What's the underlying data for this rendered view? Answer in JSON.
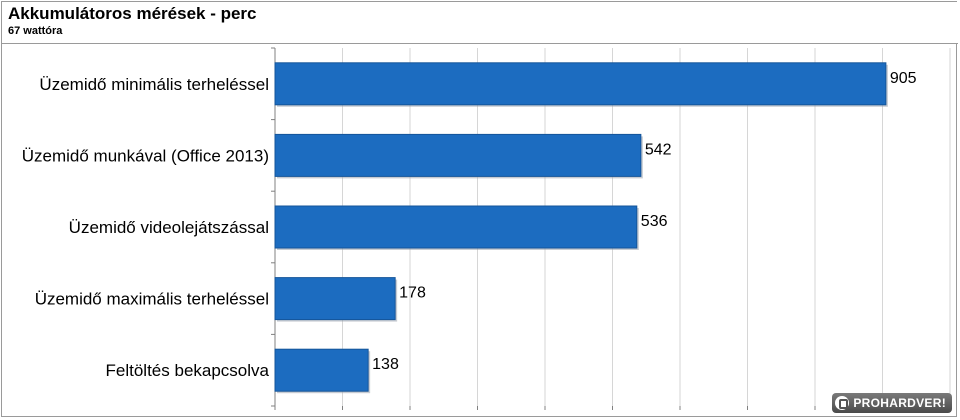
{
  "chart_data": {
    "type": "bar",
    "orientation": "horizontal",
    "title": "Akkumulátoros mérések - perc",
    "subtitle": "67 wattóra",
    "categories": [
      "Üzemidő minimális terheléssel",
      "Üzemidő munkával (Office 2013)",
      "Üzemidő videolejátszással",
      "Üzemidő maximális terheléssel",
      "Feltöltés bekapcsolva"
    ],
    "values": [
      905,
      542,
      536,
      178,
      138
    ],
    "xlim": [
      0,
      1000
    ],
    "grid": true,
    "colors": {
      "bar": "#1c6cc0",
      "bar_edge": "#15559a",
      "grid": "#d6d6d6",
      "axis": "#808080"
    }
  },
  "watermark": {
    "text": "PROHARDVER!"
  }
}
